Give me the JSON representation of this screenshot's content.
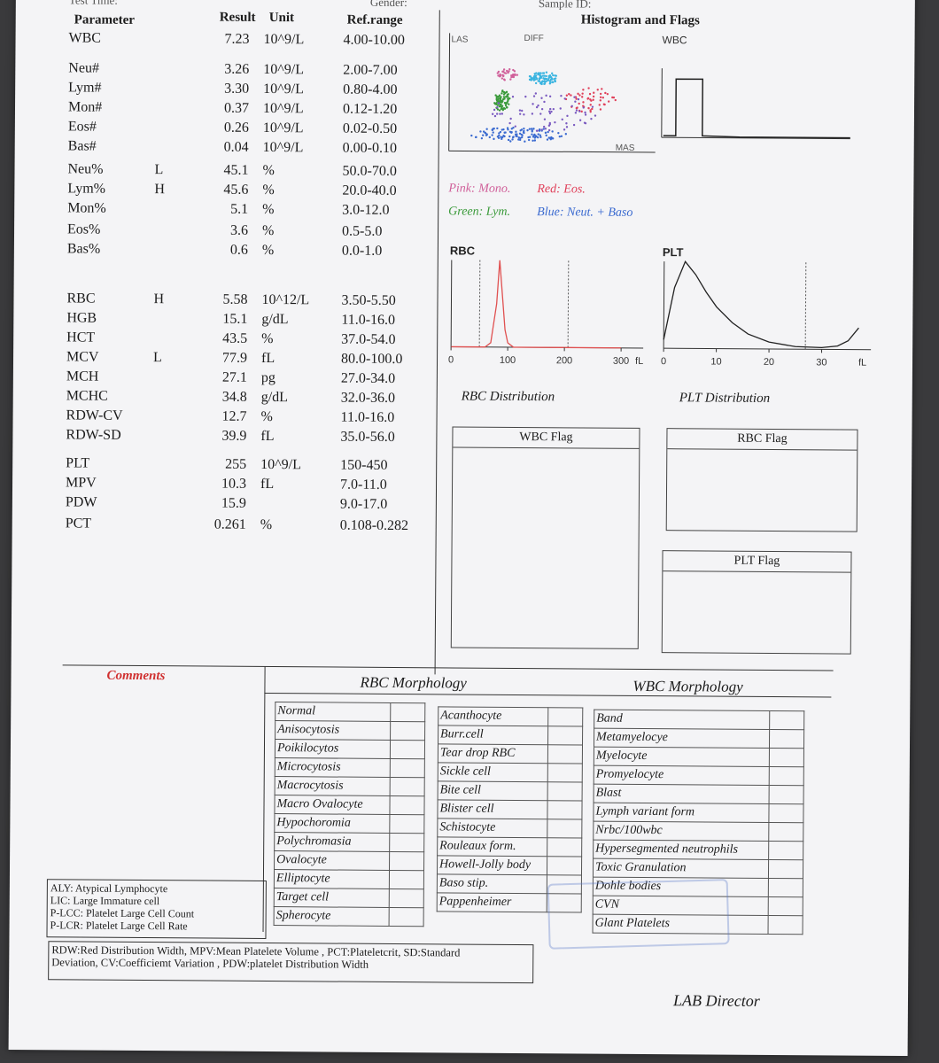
{
  "header": {
    "top_left_partial": "Test Time:",
    "top_mid_partial": "Gender:",
    "top_right_partial": "Sample ID:"
  },
  "columns": {
    "parameter": "Parameter",
    "result": "Result",
    "unit": "Unit",
    "ref": "Ref.range"
  },
  "results": [
    {
      "name": "WBC",
      "flag": "",
      "value": "7.23",
      "unit": "10^9/L",
      "ref": "4.00-10.00"
    },
    {
      "name": "Neu#",
      "flag": "",
      "value": "3.26",
      "unit": "10^9/L",
      "ref": "2.00-7.00"
    },
    {
      "name": "Lym#",
      "flag": "",
      "value": "3.30",
      "unit": "10^9/L",
      "ref": "0.80-4.00"
    },
    {
      "name": "Mon#",
      "flag": "",
      "value": "0.37",
      "unit": "10^9/L",
      "ref": "0.12-1.20"
    },
    {
      "name": "Eos#",
      "flag": "",
      "value": "0.26",
      "unit": "10^9/L",
      "ref": "0.02-0.50"
    },
    {
      "name": "Bas#",
      "flag": "",
      "value": "0.04",
      "unit": "10^9/L",
      "ref": "0.00-0.10"
    },
    {
      "name": "Neu%",
      "flag": "L",
      "value": "45.1",
      "unit": "%",
      "ref": "50.0-70.0"
    },
    {
      "name": "Lym%",
      "flag": "H",
      "value": "45.6",
      "unit": "%",
      "ref": "20.0-40.0"
    },
    {
      "name": "Mon%",
      "flag": "",
      "value": "5.1",
      "unit": "%",
      "ref": "3.0-12.0"
    },
    {
      "name": "Eos%",
      "flag": "",
      "value": "3.6",
      "unit": "%",
      "ref": "0.5-5.0"
    },
    {
      "name": "Bas%",
      "flag": "",
      "value": "0.6",
      "unit": "%",
      "ref": "0.0-1.0"
    },
    {
      "name": "RBC",
      "flag": "H",
      "value": "5.58",
      "unit": "10^12/L",
      "ref": "3.50-5.50"
    },
    {
      "name": "HGB",
      "flag": "",
      "value": "15.1",
      "unit": "g/dL",
      "ref": "11.0-16.0"
    },
    {
      "name": "HCT",
      "flag": "",
      "value": "43.5",
      "unit": "%",
      "ref": "37.0-54.0"
    },
    {
      "name": "MCV",
      "flag": "L",
      "value": "77.9",
      "unit": "fL",
      "ref": "80.0-100.0"
    },
    {
      "name": "MCH",
      "flag": "",
      "value": "27.1",
      "unit": "pg",
      "ref": "27.0-34.0"
    },
    {
      "name": "MCHC",
      "flag": "",
      "value": "34.8",
      "unit": "g/dL",
      "ref": "32.0-36.0"
    },
    {
      "name": "RDW-CV",
      "flag": "",
      "value": "12.7",
      "unit": "%",
      "ref": "11.0-16.0"
    },
    {
      "name": "RDW-SD",
      "flag": "",
      "value": "39.9",
      "unit": "fL",
      "ref": "35.0-56.0"
    },
    {
      "name": "PLT",
      "flag": "",
      "value": "255",
      "unit": "10^9/L",
      "ref": "150-450"
    },
    {
      "name": "MPV",
      "flag": "",
      "value": "10.3",
      "unit": "fL",
      "ref": "7.0-11.0"
    },
    {
      "name": "PDW",
      "flag": "",
      "value": "15.9",
      "unit": "",
      "ref": "9.0-17.0"
    },
    {
      "name": "PCT",
      "flag": "",
      "value": "0.261",
      "unit": "%",
      "ref": "0.108-0.282"
    }
  ],
  "histogram": {
    "title": "Histogram and Flags",
    "scatter_label_las": "LAS",
    "scatter_label_diff": "DIFF",
    "scatter_label_mas": "MAS",
    "wbc_label": "WBC",
    "legend_pink": "Pink: Mono.",
    "legend_red": "Red: Eos.",
    "legend_green": "Green: Lym.",
    "legend_blue": "Blue: Neut. + Baso",
    "colors": {
      "pink": "#d0609a",
      "red": "#e0405a",
      "green": "#3a9a3a",
      "blue": "#3a6ad0",
      "cyan": "#3ab4e0"
    }
  },
  "chart_data": [
    {
      "type": "line",
      "title": "RBC",
      "xlabel": "RBC Distribution",
      "unit": "fL",
      "x_ticks": [
        "0",
        "100",
        "200",
        "300"
      ],
      "xlim": [
        0,
        300
      ],
      "series": [
        {
          "x": [
            0,
            60,
            70,
            80,
            85,
            90,
            95,
            100,
            110,
            120,
            300
          ],
          "y": [
            0,
            0,
            0.05,
            0.5,
            1.0,
            0.6,
            0.2,
            0.05,
            0,
            0,
            0
          ]
        }
      ]
    },
    {
      "type": "line",
      "title": "PLT",
      "xlabel": "PLT Distribution",
      "unit": "fL",
      "x_ticks": [
        "0",
        "10",
        "20",
        "30"
      ],
      "xlim": [
        0,
        38
      ],
      "series": [
        {
          "x": [
            0,
            2,
            4,
            6,
            8,
            10,
            13,
            16,
            20,
            25,
            30,
            33,
            35,
            37
          ],
          "y": [
            0.1,
            0.7,
            1.0,
            0.85,
            0.65,
            0.48,
            0.3,
            0.17,
            0.08,
            0.03,
            0.02,
            0.04,
            0.1,
            0.25
          ]
        }
      ]
    }
  ],
  "flags": {
    "wbc": "WBC Flag",
    "rbc": "RBC Flag",
    "plt": "PLT Flag"
  },
  "morph": {
    "comments": "Comments",
    "rbc_title": "RBC Morphology",
    "wbc_title": "WBC Morphology",
    "col1": [
      "Normal",
      "Anisocytosis",
      "Poikilocytos",
      "Microcytosis",
      "Macrocytosis",
      "Macro Ovalocyte",
      "Hypochoromia",
      "Polychromasia",
      "Ovalocyte",
      "Elliptocyte",
      "Target cell",
      "Spherocyte"
    ],
    "col2": [
      "Acanthocyte",
      "Burr.cell",
      "Tear drop RBC",
      "Sickle cell",
      "Bite cell",
      "Blister cell",
      "Schistocyte",
      "Rouleaux form.",
      "Howell-Jolly body",
      "Baso stip.",
      "Pappenheimer"
    ],
    "col3": [
      "Band",
      "Metamyelocye",
      "Myelocyte",
      "Promyelocyte",
      "Blast",
      "Lymph variant form",
      "Nrbc/100wbc",
      "Hypersegmented neutrophils",
      "Toxic Granulation",
      "Dohle bodies",
      "CVN",
      "Glant Platelets"
    ]
  },
  "abbrev": [
    "ALY: Atypical Lymphocyte",
    "LIC: Large Immature cell",
    "P-LCC: Platelet Large Cell Count",
    "P-LCR: Platelet Large Cell Rate"
  ],
  "footer": {
    "line1": "RDW:Red Distribution Width, MPV:Mean Platelete Volume , PCT:Plateletcrit, SD:Standard",
    "line2": "Deviation, CV:Coefficiemt Variation , PDW:platelet Distribution Width",
    "director": "LAB Director"
  }
}
